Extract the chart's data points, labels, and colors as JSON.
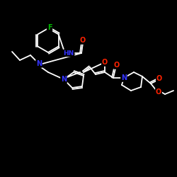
{
  "background_color": "#000000",
  "bond_color": "#ffffff",
  "atom_colors": {
    "F": "#00bb00",
    "N": "#3333ff",
    "O": "#ff2200",
    "C": "#ffffff",
    "H": "#ffffff"
  },
  "figsize": [
    2.5,
    2.5
  ],
  "dpi": 100
}
